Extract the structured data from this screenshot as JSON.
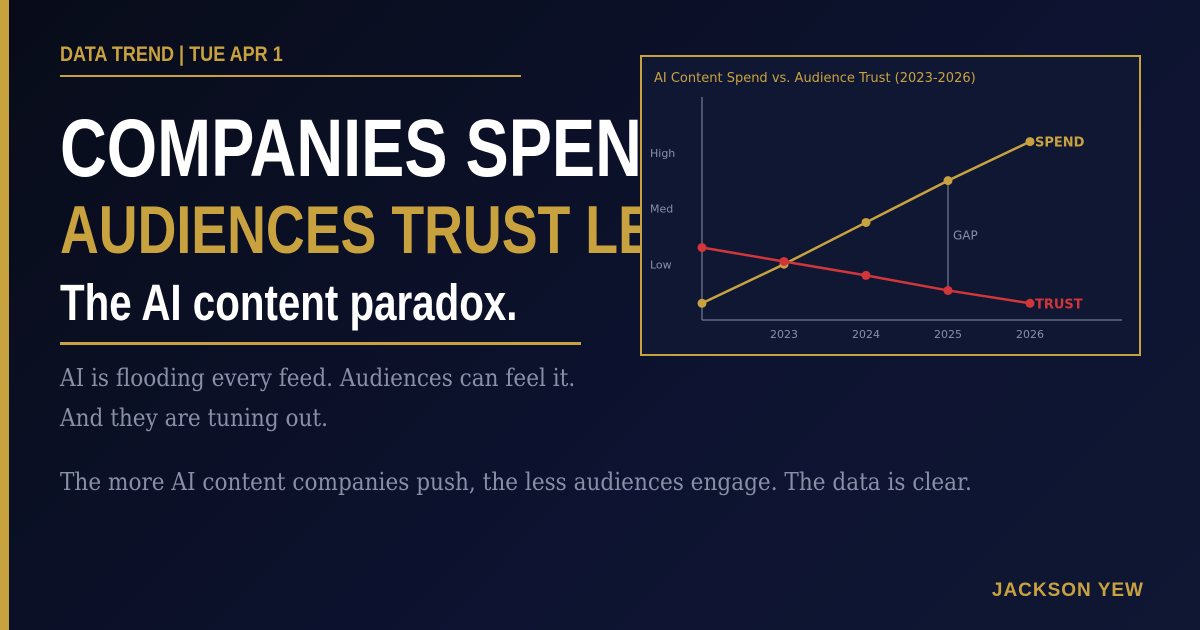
{
  "kicker": "DATA TREND  |  TUE APR 1",
  "headline": {
    "line1": "COMPANIES SPEND MORE",
    "line2": "AUDIENCES TRUST LESS"
  },
  "subhead": "The AI content paradox.",
  "body": {
    "line1": "AI is flooding every feed. Audiences can feel it.",
    "line2": "And they are tuning out.",
    "line3": "The more AI content companies push, the less audiences engage. The data is clear."
  },
  "author": "JACKSON YEW",
  "colors": {
    "gold": "#c9a240",
    "red": "#d1363a",
    "background": "#0d1330",
    "muted": "#8a8fa8"
  },
  "chart_data": {
    "type": "line",
    "title": "AI Content Spend vs. Audience Trust  (2023-2026)",
    "x_tick_labels": [
      "2023",
      "2024",
      "2025",
      "2026"
    ],
    "y_tick_labels": [
      "Low",
      "Med",
      "High"
    ],
    "xlim": [
      2022,
      2027
    ],
    "ylim": [
      0,
      4
    ],
    "series": [
      {
        "name": "SPEND",
        "color": "#c9a240",
        "x": [
          2022,
          2023,
          2024,
          2025,
          2026
        ],
        "y": [
          0.3,
          1.0,
          1.75,
          2.5,
          3.2
        ]
      },
      {
        "name": "TRUST",
        "color": "#d1363a",
        "x": [
          2022,
          2023,
          2024,
          2025,
          2026
        ],
        "y": [
          1.3,
          1.05,
          0.8,
          0.53,
          0.3
        ]
      }
    ],
    "annotation": {
      "text": "GAP",
      "x": 2025
    },
    "grid": false,
    "legend": "inline at line ends"
  }
}
